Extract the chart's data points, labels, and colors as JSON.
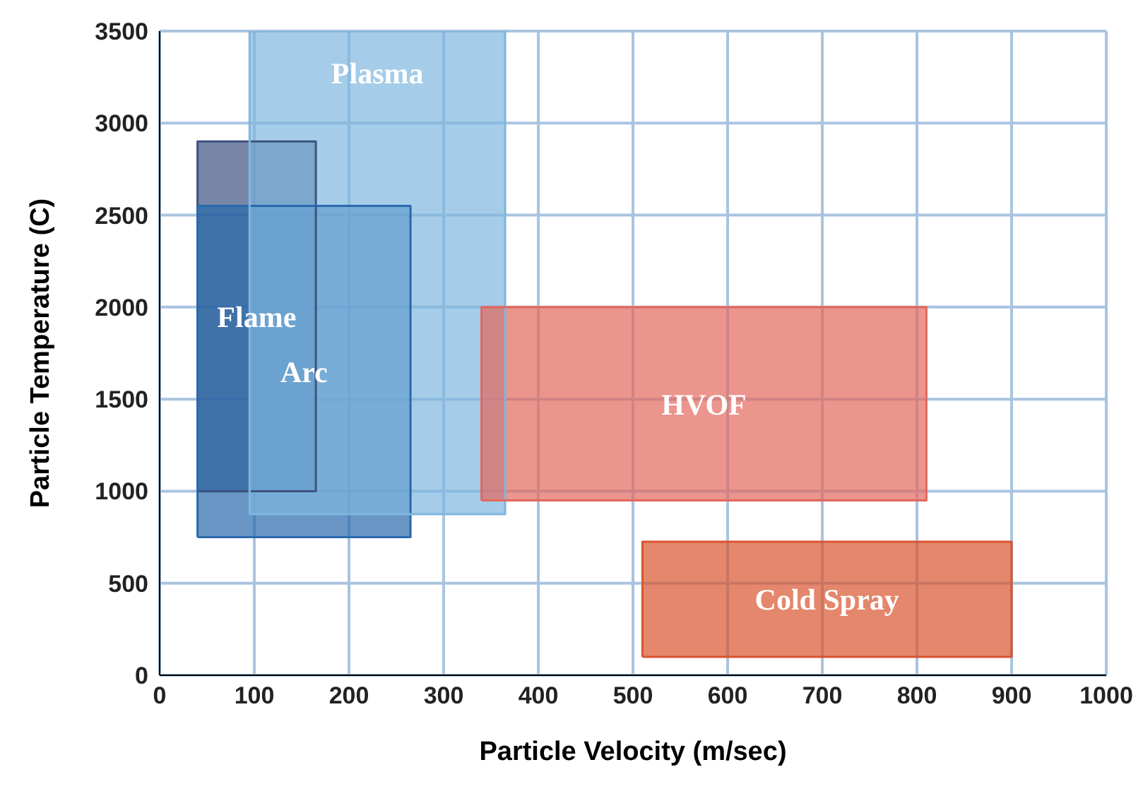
{
  "chart_data": {
    "type": "area",
    "xlabel": "Particle Velocity (m/sec)",
    "ylabel": "Particle Temperature (C)",
    "xlim": [
      0,
      1000
    ],
    "xticks": [
      0,
      100,
      200,
      300,
      400,
      500,
      600,
      700,
      800,
      900,
      1000
    ],
    "ylim": [
      0,
      3500
    ],
    "yticks": [
      0,
      500,
      1000,
      1500,
      2000,
      2500,
      3000,
      3500
    ],
    "grid": true,
    "series": [
      {
        "name": "Flame",
        "color": "#3d5380",
        "x": [
          40,
          165,
          165,
          40,
          40
        ],
        "values": [
          1000,
          1000,
          2900,
          2900,
          1000
        ]
      },
      {
        "name": "Arc",
        "color": "#2a6aad",
        "x": [
          40,
          265,
          265,
          40,
          40
        ],
        "values": [
          750,
          750,
          2550,
          2550,
          750
        ]
      },
      {
        "name": "Plasma",
        "color": "#7fb6de",
        "x": [
          95,
          365,
          365,
          95,
          95
        ],
        "values": [
          875,
          875,
          3500,
          3500,
          875
        ]
      },
      {
        "name": "HVOF",
        "color": "#e2685c",
        "x": [
          340,
          810,
          810,
          340,
          340
        ],
        "values": [
          950,
          950,
          2000,
          2000,
          950
        ]
      },
      {
        "name": "Cold Spray",
        "color": "#d9542e",
        "x": [
          510,
          900,
          900,
          510,
          510
        ],
        "values": [
          100,
          100,
          725,
          725,
          100
        ]
      }
    ]
  }
}
